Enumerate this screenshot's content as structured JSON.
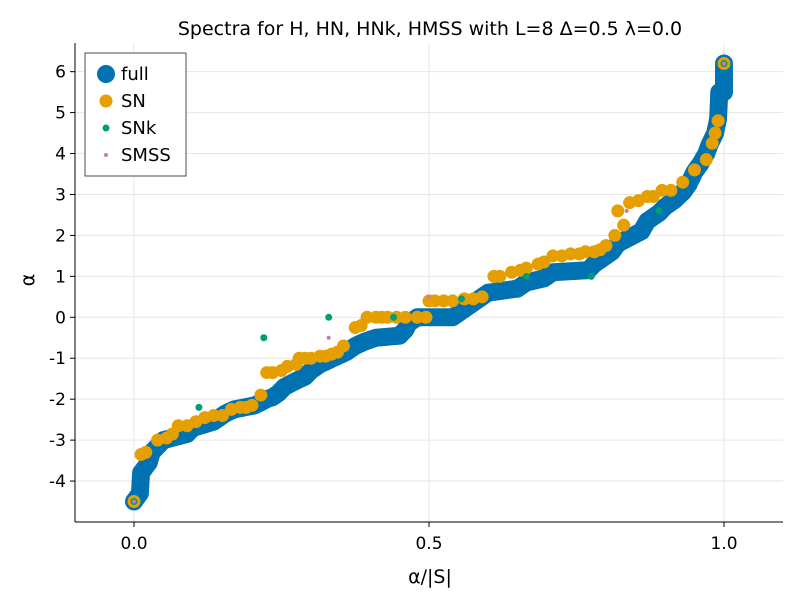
{
  "chart_data": {
    "type": "scatter",
    "title": "Spectra for H, HN, HNk, HMSS with L=8 Δ=0.5 λ=0.0",
    "xlabel": "α/|S|",
    "ylabel": "α",
    "xlim": [
      -0.1,
      1.1
    ],
    "ylim": [
      -5.0,
      6.7
    ],
    "xticks": [
      0.0,
      0.5,
      1.0
    ],
    "xtick_labels": [
      "0.0",
      "0.5",
      "1.0"
    ],
    "yticks": [
      -4,
      -3,
      -2,
      -1,
      0,
      1,
      2,
      3,
      4,
      5,
      6
    ],
    "ytick_labels": [
      "-4",
      "-3",
      "-2",
      "-1",
      "0",
      "1",
      "2",
      "3",
      "4",
      "5",
      "6"
    ],
    "grid": true,
    "legend_position": "top-left",
    "series": [
      {
        "name": "full",
        "color": "#0072b2",
        "marker_size": "large",
        "segments": [
          [
            0.0,
            -4.5
          ],
          [
            0.01,
            -4.3
          ],
          [
            0.012,
            -3.8
          ],
          [
            0.025,
            -3.55
          ],
          [
            0.03,
            -3.3
          ],
          [
            0.05,
            -3.0
          ],
          [
            0.09,
            -2.85
          ],
          [
            0.1,
            -2.7
          ],
          [
            0.135,
            -2.55
          ],
          [
            0.155,
            -2.35
          ],
          [
            0.17,
            -2.25
          ],
          [
            0.205,
            -2.15
          ],
          [
            0.225,
            -2.0
          ],
          [
            0.235,
            -1.95
          ],
          [
            0.245,
            -1.85
          ],
          [
            0.255,
            -1.7
          ],
          [
            0.275,
            -1.55
          ],
          [
            0.29,
            -1.45
          ],
          [
            0.3,
            -1.3
          ],
          [
            0.315,
            -1.15
          ],
          [
            0.33,
            -1.05
          ],
          [
            0.345,
            -0.95
          ],
          [
            0.36,
            -0.85
          ],
          [
            0.375,
            -0.7
          ],
          [
            0.39,
            -0.6
          ],
          [
            0.41,
            -0.5
          ],
          [
            0.45,
            -0.45
          ],
          [
            0.46,
            -0.3
          ],
          [
            0.465,
            -0.15
          ],
          [
            0.48,
            0.0
          ],
          [
            0.5,
            0.0
          ],
          [
            0.54,
            0.0
          ],
          [
            0.555,
            0.15
          ],
          [
            0.57,
            0.3
          ],
          [
            0.585,
            0.45
          ],
          [
            0.6,
            0.6
          ],
          [
            0.65,
            0.7
          ],
          [
            0.665,
            0.85
          ],
          [
            0.695,
            0.95
          ],
          [
            0.71,
            1.1
          ],
          [
            0.77,
            1.15
          ],
          [
            0.78,
            1.3
          ],
          [
            0.795,
            1.45
          ],
          [
            0.81,
            1.6
          ],
          [
            0.82,
            1.8
          ],
          [
            0.84,
            1.95
          ],
          [
            0.86,
            2.1
          ],
          [
            0.87,
            2.35
          ],
          [
            0.89,
            2.55
          ],
          [
            0.9,
            2.7
          ],
          [
            0.915,
            2.85
          ],
          [
            0.93,
            3.05
          ],
          [
            0.94,
            3.25
          ],
          [
            0.95,
            3.55
          ],
          [
            0.96,
            3.75
          ],
          [
            0.97,
            4.0
          ],
          [
            0.975,
            4.2
          ],
          [
            0.985,
            4.5
          ],
          [
            0.99,
            4.85
          ],
          [
            0.992,
            5.5
          ],
          [
            1.0,
            5.5
          ],
          [
            1.0,
            6.2
          ]
        ]
      },
      {
        "name": "SN",
        "color": "#e69f00",
        "marker_size": "medium",
        "points": [
          [
            0.0,
            -4.5
          ],
          [
            0.012,
            -3.35
          ],
          [
            0.02,
            -3.3
          ],
          [
            0.04,
            -3.0
          ],
          [
            0.055,
            -2.95
          ],
          [
            0.065,
            -2.85
          ],
          [
            0.075,
            -2.65
          ],
          [
            0.09,
            -2.65
          ],
          [
            0.105,
            -2.55
          ],
          [
            0.12,
            -2.45
          ],
          [
            0.135,
            -2.4
          ],
          [
            0.15,
            -2.4
          ],
          [
            0.165,
            -2.25
          ],
          [
            0.18,
            -2.2
          ],
          [
            0.19,
            -2.2
          ],
          [
            0.2,
            -2.15
          ],
          [
            0.215,
            -1.9
          ],
          [
            0.225,
            -1.35
          ],
          [
            0.235,
            -1.35
          ],
          [
            0.25,
            -1.3
          ],
          [
            0.26,
            -1.2
          ],
          [
            0.275,
            -1.15
          ],
          [
            0.28,
            -1.0
          ],
          [
            0.29,
            -1.0
          ],
          [
            0.3,
            -1.0
          ],
          [
            0.315,
            -0.95
          ],
          [
            0.325,
            -0.95
          ],
          [
            0.335,
            -0.9
          ],
          [
            0.345,
            -0.85
          ],
          [
            0.355,
            -0.7
          ],
          [
            0.375,
            -0.25
          ],
          [
            0.385,
            -0.2
          ],
          [
            0.395,
            0.0
          ],
          [
            0.41,
            0.0
          ],
          [
            0.42,
            0.0
          ],
          [
            0.43,
            0.0
          ],
          [
            0.445,
            0.0
          ],
          [
            0.46,
            0.0
          ],
          [
            0.48,
            0.0
          ],
          [
            0.495,
            0.0
          ],
          [
            0.5,
            0.4
          ],
          [
            0.51,
            0.4
          ],
          [
            0.525,
            0.4
          ],
          [
            0.54,
            0.4
          ],
          [
            0.56,
            0.45
          ],
          [
            0.575,
            0.45
          ],
          [
            0.59,
            0.5
          ],
          [
            0.61,
            1.0
          ],
          [
            0.62,
            1.0
          ],
          [
            0.64,
            1.1
          ],
          [
            0.655,
            1.15
          ],
          [
            0.665,
            1.2
          ],
          [
            0.685,
            1.3
          ],
          [
            0.695,
            1.35
          ],
          [
            0.71,
            1.5
          ],
          [
            0.725,
            1.5
          ],
          [
            0.74,
            1.55
          ],
          [
            0.755,
            1.55
          ],
          [
            0.765,
            1.6
          ],
          [
            0.78,
            1.6
          ],
          [
            0.79,
            1.65
          ],
          [
            0.8,
            1.75
          ],
          [
            0.815,
            2.0
          ],
          [
            0.83,
            2.25
          ],
          [
            0.82,
            2.6
          ],
          [
            0.84,
            2.8
          ],
          [
            0.855,
            2.85
          ],
          [
            0.87,
            2.95
          ],
          [
            0.88,
            2.95
          ],
          [
            0.895,
            3.1
          ],
          [
            0.91,
            3.1
          ],
          [
            0.93,
            3.3
          ],
          [
            0.95,
            3.6
          ],
          [
            0.97,
            3.85
          ],
          [
            0.98,
            4.25
          ],
          [
            0.985,
            4.5
          ],
          [
            0.99,
            4.8
          ],
          [
            1.0,
            6.2
          ]
        ]
      },
      {
        "name": "SNk",
        "color": "#009e73",
        "marker_size": "small",
        "points": [
          [
            0.0,
            -4.5
          ],
          [
            0.11,
            -2.2
          ],
          [
            0.22,
            -0.5
          ],
          [
            0.33,
            0.0
          ],
          [
            0.44,
            0.0
          ],
          [
            0.555,
            0.45
          ],
          [
            0.665,
            1.0
          ],
          [
            0.775,
            1.0
          ],
          [
            0.89,
            2.6
          ],
          [
            1.0,
            6.2
          ]
        ]
      },
      {
        "name": "SMSS",
        "color": "#cc79a7",
        "marker_size": "tiny",
        "points": [
          [
            0.0,
            -4.5
          ],
          [
            0.33,
            -0.5
          ],
          [
            0.5,
            0.5
          ],
          [
            0.835,
            2.6
          ],
          [
            1.0,
            6.2
          ]
        ]
      }
    ]
  }
}
